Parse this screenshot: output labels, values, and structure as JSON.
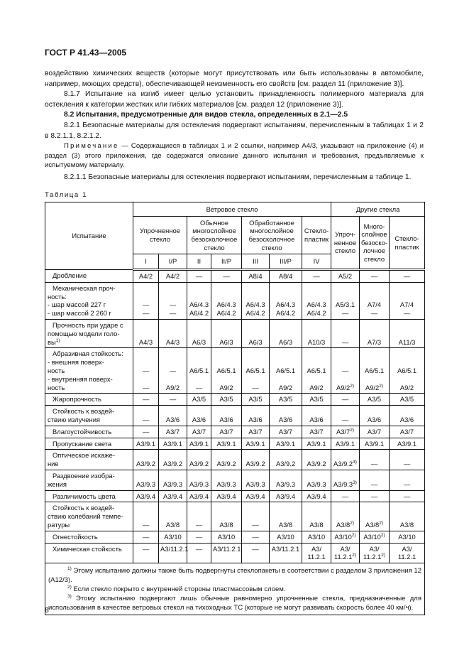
{
  "header": {
    "doc_id": "ГОСТ Р 41.43—2005"
  },
  "paragraphs": [
    "воздействию химических веществ (которые могут присутствовать или быть использованы в автомобиле, например, моющих средств), обеспечивающей неизменность его свойств [см. раздел 11 (приложение 3)].",
    "8.1.7 Испытание на изгиб имеет целью установить принадлежность полимерного материала для остекления к категории жестких или гибких материалов [см. раздел 12 (приложение 3)].",
    "8.2 Испытания, предусмотренные для видов стекла, определенных в 2.1—2.5",
    "8.2.1 Безопасные материалы для остекления подвергают испытаниям, перечисленным в таблицах 1 и 2 в 8.2.1.1, 8.2.1.2."
  ],
  "note": {
    "label": "Примечание",
    "text": " — Содержащиеся в таблицах 1 и 2 ссылки, например А4/3, указывают на приложение (4) и раздел (3) этого приложения, где содержатся описание данного испытания и требования, предъявляемые к испытуемому материалу."
  },
  "para_after_note": "8.2.1.1 Безопасные материалы для остекления подвергают испытаниям, перечисленным в таблице 1.",
  "table_caption": "Таблица 1",
  "table": {
    "col_test": "Испытание",
    "group_windscreen": "Ветровое стекло",
    "group_other": "Другие стекла",
    "subgroups": [
      "Упрочненное стекло",
      "Обычное многослойное безосколочное стекло",
      "Обработанное многослойное безосколочное стекло",
      "Стекло-пластик"
    ],
    "other_cols": [
      "Упроч-ненное стекло",
      "Много-слойное безоско-лочное стекло",
      "Стекло-пластик"
    ],
    "classes": [
      "I",
      "I/P",
      "II",
      "II/P",
      "III",
      "III/P",
      "IV"
    ],
    "rows": [
      {
        "label": [
          "Дробление"
        ],
        "cells": [
          [
            "А4/2"
          ],
          [
            "А4/2"
          ],
          [
            "—"
          ],
          [
            "—"
          ],
          [
            "А8/4"
          ],
          [
            "А8/4"
          ],
          [
            "—"
          ],
          [
            "А5/2"
          ],
          [
            "—"
          ],
          [
            "—"
          ]
        ]
      },
      {
        "label": [
          "Механическая проч-",
          "ность:",
          "- шар массой 227 г",
          "- шар массой 2 260 г"
        ],
        "cells": [
          [
            "—",
            "—"
          ],
          [
            "—",
            "—"
          ],
          [
            "А6/4.3",
            "А6/4.2"
          ],
          [
            "А6/4.3",
            "А6/4.2"
          ],
          [
            "А6/4.3",
            "А6/4.2"
          ],
          [
            "А6/4.3",
            "А6/4.2"
          ],
          [
            "А6/4.3",
            "А6/4.2"
          ],
          [
            "А5/3.1",
            "—"
          ],
          [
            "А7/4",
            "—"
          ],
          [
            "А7/4",
            "—"
          ]
        ]
      },
      {
        "label": [
          "Прочность при ударе с",
          "помощью модели голо-",
          "вы"
        ],
        "label_sup": "1)",
        "cells": [
          [
            "А4/3"
          ],
          [
            "А4/3"
          ],
          [
            "А6/3"
          ],
          [
            "А6/3"
          ],
          [
            "А6/3"
          ],
          [
            "А6/3"
          ],
          [
            "А10/3"
          ],
          [
            "—"
          ],
          [
            "А7/3"
          ],
          [
            "А11/3"
          ]
        ]
      },
      {
        "label": [
          "Абразивная стойкость:",
          "- внешняя поверх-",
          "ность",
          "- внутренняя поверх-",
          "ность"
        ],
        "cells": [
          [
            "—",
            "",
            "—"
          ],
          [
            "—",
            "",
            "А9/2"
          ],
          [
            "А6/5.1",
            "",
            "—"
          ],
          [
            "А6/5.1",
            "",
            "А9/2"
          ],
          [
            "А6/5.1",
            "",
            "—"
          ],
          [
            "А6/5.1",
            "",
            "А9/2"
          ],
          [
            "А6/5.1",
            "",
            "А9/2"
          ],
          [
            "—",
            "",
            [
              "А9/2",
              "2)"
            ]
          ],
          [
            "А6/5.1",
            "",
            [
              "А9/2",
              "2)"
            ]
          ],
          [
            "А6/5.1",
            "",
            "А9/2"
          ]
        ]
      },
      {
        "label": [
          "Жаропрочность"
        ],
        "cells": [
          [
            "—"
          ],
          [
            "—"
          ],
          [
            "А3/5"
          ],
          [
            "А3/5"
          ],
          [
            "А3/5"
          ],
          [
            "А3/5"
          ],
          [
            "А3/5"
          ],
          [
            "—"
          ],
          [
            "А3/5"
          ],
          [
            "А3/5"
          ]
        ]
      },
      {
        "label": [
          "Стойкость к воздей-",
          "ствию излучения"
        ],
        "cells": [
          [
            "—"
          ],
          [
            "А3/6"
          ],
          [
            "А3/6"
          ],
          [
            "А3/6"
          ],
          [
            "А3/6"
          ],
          [
            "А3/6"
          ],
          [
            "А3/6"
          ],
          [
            "—"
          ],
          [
            "А3/6"
          ],
          [
            "А3/6"
          ]
        ]
      },
      {
        "label": [
          "Влагоустойчивость"
        ],
        "cells": [
          [
            "—"
          ],
          [
            "А3/7"
          ],
          [
            "А3/7"
          ],
          [
            "А3/7"
          ],
          [
            "А3/7"
          ],
          [
            "А3/7"
          ],
          [
            "А3/7"
          ],
          [
            [
              "А3/7",
              "2)"
            ]
          ],
          [
            "А3/7"
          ],
          [
            "А3/7"
          ]
        ]
      },
      {
        "label": [
          "Пропускание света"
        ],
        "cells": [
          [
            "А3/9.1"
          ],
          [
            "А3/9.1"
          ],
          [
            "А3/9.1"
          ],
          [
            "А3/9.1"
          ],
          [
            "А3/9.1"
          ],
          [
            "А3/9.1"
          ],
          [
            "А3/9.1"
          ],
          [
            "А3/9.1"
          ],
          [
            "А3/9.1"
          ],
          [
            "А3/9.1"
          ]
        ]
      },
      {
        "label": [
          "Оптическое искаже-",
          "ние"
        ],
        "cells": [
          [
            "А3/9.2"
          ],
          [
            "А3/9.2"
          ],
          [
            "А3/9.2"
          ],
          [
            "А3/9.2"
          ],
          [
            "А3/9.2"
          ],
          [
            "А3/9.2"
          ],
          [
            "А3/9.2"
          ],
          [
            [
              "А3/9.2",
              "3)"
            ]
          ],
          [
            "—"
          ],
          [
            "—"
          ]
        ]
      },
      {
        "label": [
          "Раздвоение изобра-",
          "жения"
        ],
        "cells": [
          [
            "А3/9.3"
          ],
          [
            "А3/9.3"
          ],
          [
            "А3/9.3"
          ],
          [
            "А3/9.3"
          ],
          [
            "А3/9.3"
          ],
          [
            "А3/9.3"
          ],
          [
            "А3/9.3"
          ],
          [
            [
              "А3/9.3",
              "3)"
            ]
          ],
          [
            "—"
          ],
          [
            "—"
          ]
        ]
      },
      {
        "label": [
          "Различимость цвета"
        ],
        "cells": [
          [
            "А3/9.4"
          ],
          [
            "А3/9.4"
          ],
          [
            "А3/9.4"
          ],
          [
            "А3/9.4"
          ],
          [
            "А3/9.4"
          ],
          [
            "А3/9.4"
          ],
          [
            "А3/9.4"
          ],
          [
            "—"
          ],
          [
            "—"
          ],
          [
            "—"
          ]
        ]
      },
      {
        "label": [
          "Стойкость к воздей-",
          "ствию колебаний темпе-",
          "ратуры"
        ],
        "cells": [
          [
            "—"
          ],
          [
            "А3/8"
          ],
          [
            "—"
          ],
          [
            "А3/8"
          ],
          [
            "—"
          ],
          [
            "А3/8"
          ],
          [
            "А3/8"
          ],
          [
            [
              "А3/8",
              "2)"
            ]
          ],
          [
            [
              "А3/8",
              "2)"
            ]
          ],
          [
            "А3/8"
          ]
        ]
      },
      {
        "label": [
          "Огнестойкость"
        ],
        "cells": [
          [
            "—"
          ],
          [
            "А3/10"
          ],
          [
            "—"
          ],
          [
            "А3/10"
          ],
          [
            "—"
          ],
          [
            "А3/10"
          ],
          [
            "А3/10"
          ],
          [
            [
              "А3/10",
              "2)"
            ]
          ],
          [
            [
              "А3/10",
              "2)"
            ]
          ],
          [
            "А3/10"
          ]
        ]
      },
      {
        "label": [
          "Химическая стойкость"
        ],
        "cells": [
          [
            "—",
            ""
          ],
          [
            "А3/11.2.1",
            ""
          ],
          [
            "—",
            ""
          ],
          [
            "А3/11.2.1",
            ""
          ],
          [
            "—",
            ""
          ],
          [
            "А3/11.2.1",
            ""
          ],
          [
            "А3/",
            "11.2.1"
          ],
          [
            "А3/",
            [
              "11.2.1",
              "2)"
            ]
          ],
          [
            "А3/",
            [
              "11.2.1",
              "2)"
            ]
          ],
          [
            "А3/",
            "11.2.1"
          ]
        ]
      }
    ],
    "footnotes": [
      {
        "mark": "1)",
        "text": " Этому испытанию должны также быть подвергнуты стеклопакеты в соответствии с разделом 3 приложения 12 (А12/3)."
      },
      {
        "mark": "2)",
        "text": " Если стекло покрыто с внутренней стороны пластмассовым слоем."
      },
      {
        "mark": "3)",
        "text": " Этому испытанию подвергают лишь обычные равномерно упрочненные стекла, предназначенные для использования в качестве ветровых стекол на тихоходных ТС (которые не могут развивать скорость более 40 км/ч)."
      }
    ]
  },
  "page_number": "8"
}
